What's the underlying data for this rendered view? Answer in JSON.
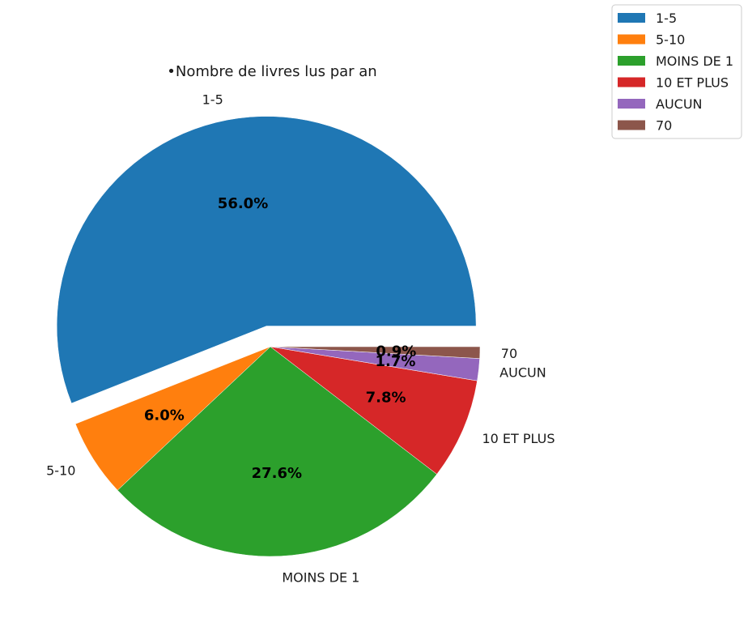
{
  "chart_data": {
    "type": "pie",
    "title": "•Nombre de livres lus par an",
    "categories": [
      "1-5",
      "5-10",
      "MOINS DE 1",
      "10 ET PLUS",
      "AUCUN",
      "70"
    ],
    "values": [
      56.0,
      6.0,
      27.6,
      7.8,
      1.7,
      0.9
    ],
    "labels_pct": [
      "56.0%",
      "6.0%",
      "27.6%",
      "7.8%",
      "1.7%",
      "0.9%"
    ],
    "colors": [
      "#1f77b4",
      "#ff7f0e",
      "#2ca02c",
      "#d62728",
      "#9467bd",
      "#8c564b"
    ],
    "explode": [
      0.1,
      0,
      0,
      0,
      0,
      0
    ],
    "legend_placement": "top-right"
  }
}
